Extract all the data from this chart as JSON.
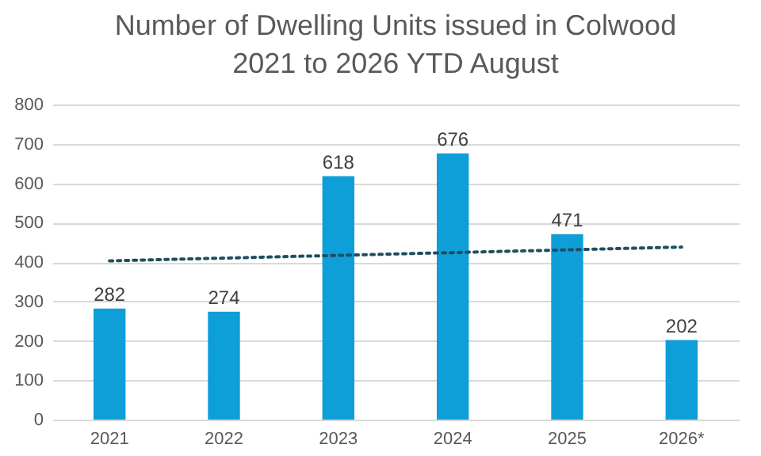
{
  "chart_data": {
    "type": "bar",
    "title": "Number of Dwelling Units issued in Colwood\n2021 to 2026 YTD August",
    "categories": [
      "2021",
      "2022",
      "2023",
      "2024",
      "2025",
      "2026*"
    ],
    "series": [
      {
        "color": "#0e9ed8",
        "values": [
          282,
          274,
          618,
          676,
          471,
          202
        ],
        "value_labels": [
          "282",
          "274",
          "618",
          "676",
          "471",
          "202"
        ]
      },
      {
        "type": "line",
        "color": "#1f4e60",
        "values": [
          403,
          410,
          417,
          424,
          431,
          438
        ],
        "line_style": "dotted"
      }
    ],
    "ylim": [
      0,
      800
    ],
    "yticks": [
      0,
      100,
      200,
      300,
      400,
      500,
      600,
      700,
      800
    ],
    "grid": "y"
  }
}
